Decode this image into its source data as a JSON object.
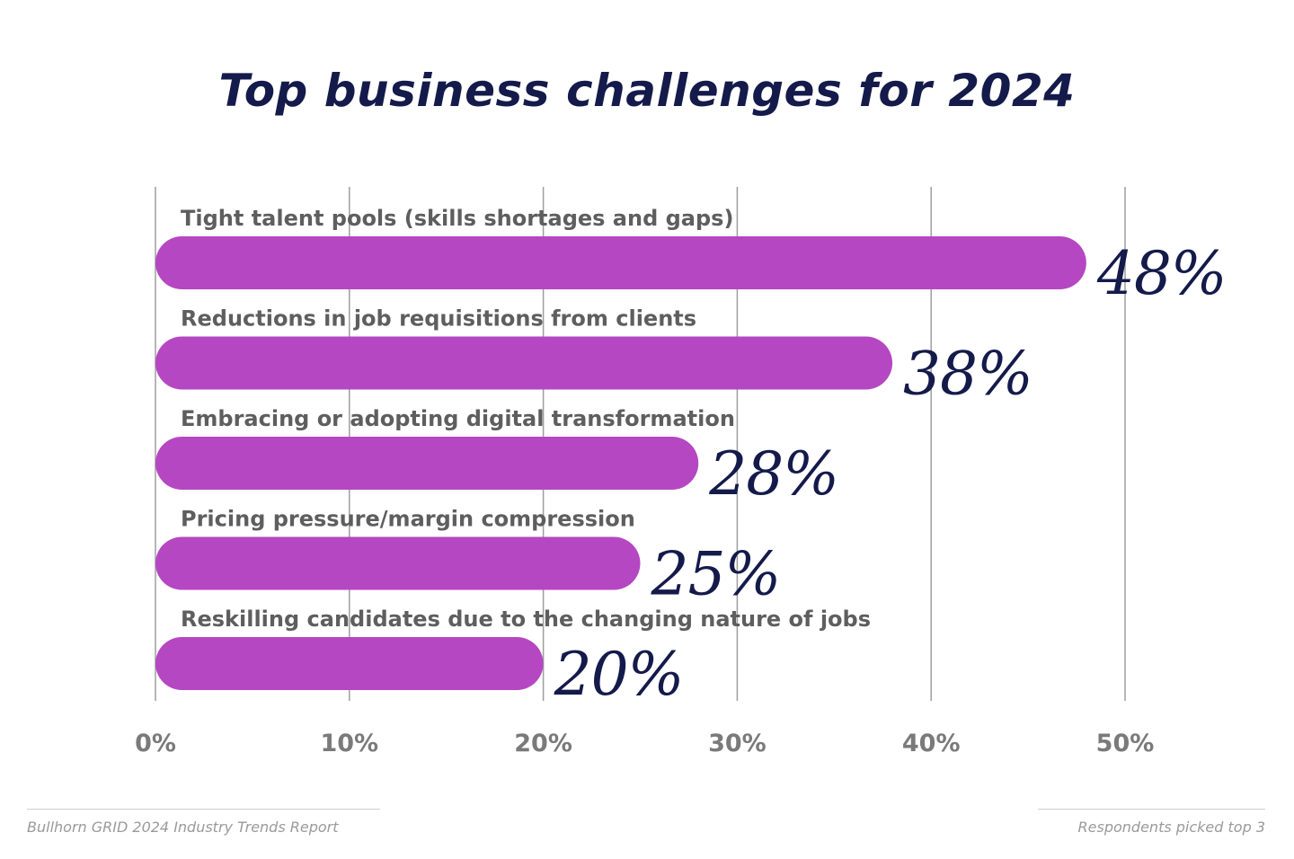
{
  "title": "Top business challenges for 2024",
  "colors": {
    "bar": "#b547c2",
    "value_text": "#141a4a",
    "category_text": "#5e5e5e",
    "tick_text": "#7a7a7a",
    "grid": "#9e9e9e"
  },
  "chart_data": {
    "type": "bar",
    "orientation": "horizontal",
    "title": "Top business challenges for 2024",
    "categories": [
      "Tight talent pools (skills shortages and gaps)",
      "Reductions in job requisitions from clients",
      "Embracing or adopting digital transformation",
      "Pricing pressure/margin compression",
      "Reskilling candidates due to the changing nature of jobs"
    ],
    "values": [
      48,
      38,
      28,
      25,
      20
    ],
    "value_labels": [
      "48%",
      "38%",
      "28%",
      "25%",
      "20%"
    ],
    "xlim": [
      0,
      50
    ],
    "xticks": [
      0,
      10,
      20,
      30,
      40,
      50
    ],
    "xtick_labels": [
      "0%",
      "10%",
      "20%",
      "30%",
      "40%",
      "50%"
    ],
    "grid": true
  },
  "footer": {
    "source": "Bullhorn GRID 2024 Industry Trends Report",
    "note": "Respondents picked top 3"
  }
}
